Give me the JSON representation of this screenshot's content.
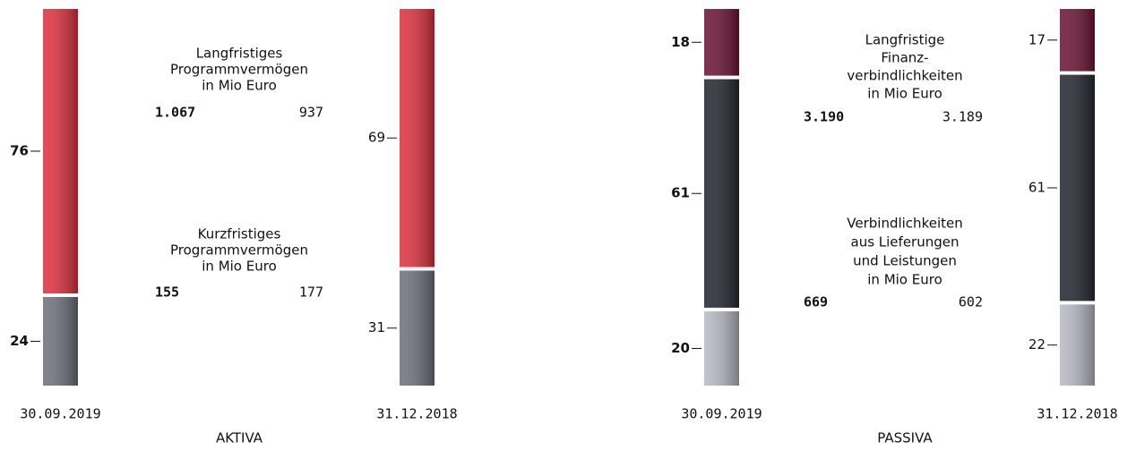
{
  "chart_data": [
    {
      "type": "stacked_bar",
      "title": "AKTIVA",
      "categories": [
        "30.09.2019",
        "31.12.2018"
      ],
      "series": [
        {
          "name": [
            "Kurzfristiges",
            "Programmvermögen",
            "in Mio Euro"
          ],
          "color": "#6f727e",
          "values": [
            24,
            31
          ],
          "amounts": [
            155,
            177
          ]
        },
        {
          "name": [
            "Langfristiges",
            "Programmvermögen",
            "in Mio Euro"
          ],
          "color": "#e0323f",
          "values": [
            76,
            69
          ],
          "amounts": [
            {
              "value": 1067,
              "label": "1.067"
            },
            937
          ]
        }
      ]
    },
    {
      "type": "stacked_bar",
      "title": "PASSIVA",
      "categories": [
        "30.09.2019",
        "31.12.2018"
      ],
      "series": [
        {
          "name": [
            "Verbindlichkeiten",
            "aus Lieferungen",
            "und Leistungen",
            "in Mio Euro"
          ],
          "color": "#b9bbc6",
          "values": [
            20,
            22
          ],
          "amounts": [
            669,
            602
          ]
        },
        {
          "name": [
            "Langfristige",
            "Finanz-",
            "verbindlichkeiten",
            "in Mio Euro"
          ],
          "color": "#252832",
          "values": [
            61,
            61
          ],
          "amounts": [
            {
              "value": 3190,
              "label": "3.190"
            },
            {
              "value": 3189,
              "label": "3.189"
            }
          ]
        },
        {
          "color": "#6e1535",
          "values": [
            18,
            17
          ]
        }
      ]
    }
  ]
}
